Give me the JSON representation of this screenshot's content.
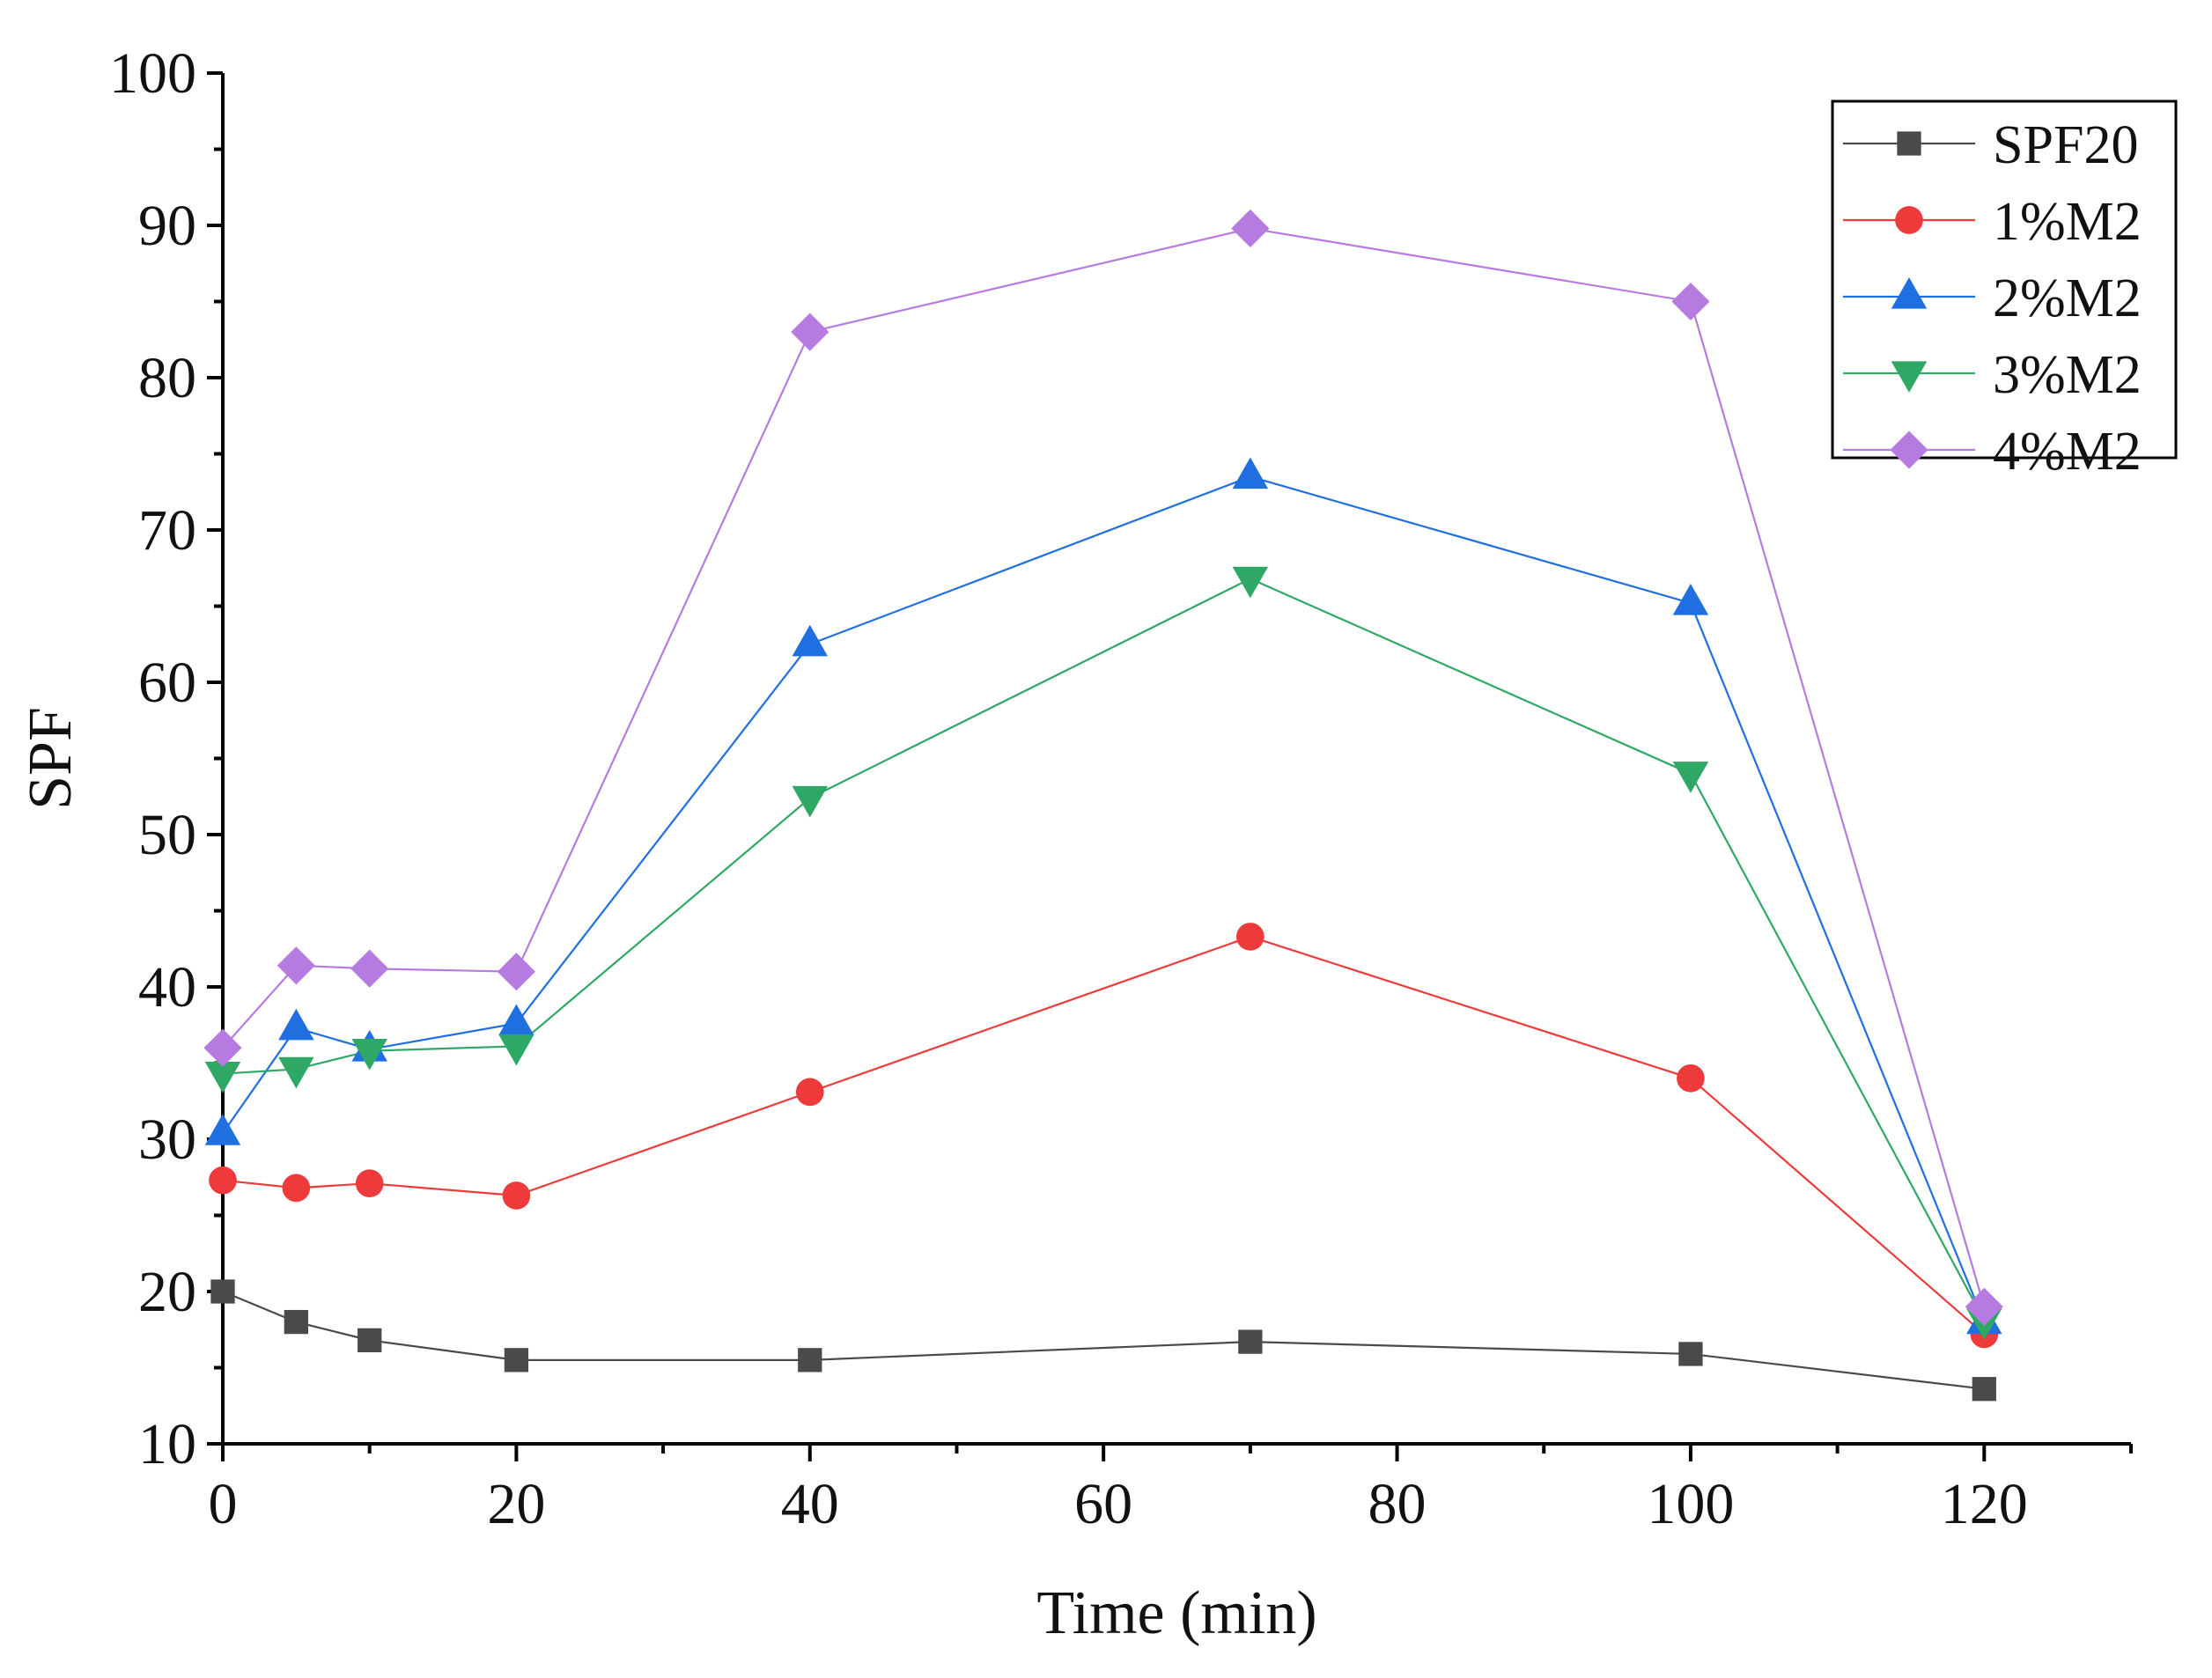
{
  "chart_data": {
    "type": "line",
    "title": "",
    "xlabel": "Time (min)",
    "ylabel": "SPF",
    "xlim": [
      0,
      130
    ],
    "ylim": [
      10,
      100
    ],
    "xticks": [
      0,
      20,
      40,
      60,
      80,
      100,
      120
    ],
    "xtick_labels": [
      "0",
      "20",
      "40",
      "60",
      "80",
      "100",
      "120"
    ],
    "yticks": [
      10,
      20,
      30,
      40,
      50,
      60,
      70,
      80,
      90,
      100
    ],
    "ytick_labels": [
      "10",
      "20",
      "30",
      "40",
      "50",
      "60",
      "70",
      "80",
      "90",
      "100"
    ],
    "grid": false,
    "legend_position": "top-right",
    "x": [
      0,
      5,
      10,
      20,
      40,
      70,
      100,
      120
    ],
    "series": [
      {
        "name": "SPF20",
        "color": "#4a4a4a",
        "marker": "square",
        "values": [
          20.0,
          18.0,
          16.8,
          15.5,
          15.5,
          16.7,
          15.9,
          13.6
        ]
      },
      {
        "name": "1%M2",
        "color": "#ee3a3a",
        "marker": "circle",
        "values": [
          27.3,
          26.8,
          27.1,
          26.3,
          33.1,
          43.3,
          34.0,
          17.2
        ]
      },
      {
        "name": "2%M2",
        "color": "#1f6fe0",
        "marker": "triangle-up",
        "values": [
          30.4,
          37.3,
          35.9,
          37.6,
          62.5,
          73.5,
          65.2,
          18.0
        ]
      },
      {
        "name": "3%M2",
        "color": "#2fa866",
        "marker": "triangle-down",
        "values": [
          34.3,
          34.6,
          35.8,
          36.1,
          52.4,
          66.8,
          54.0,
          18.1
        ]
      },
      {
        "name": "4%M2",
        "color": "#b57be0",
        "marker": "diamond",
        "values": [
          36.0,
          41.4,
          41.2,
          41.0,
          83.0,
          89.8,
          85.0,
          19.0
        ]
      }
    ]
  }
}
